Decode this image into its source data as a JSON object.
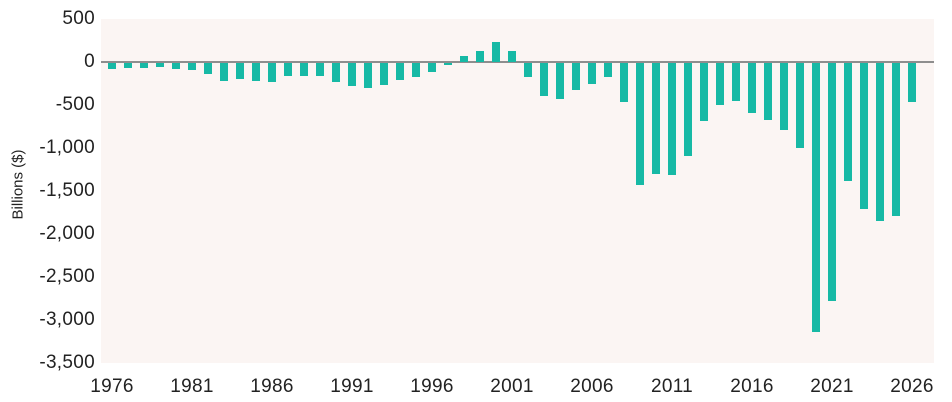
{
  "figure": {
    "title": "",
    "y_axis_title": "Billions ($)",
    "colors": {
      "background": "#ffffff",
      "plot_background": "#fbf5f3",
      "bar": "#17b9a5",
      "zero_line": "#8e8e8e",
      "text": "#222222"
    }
  },
  "chart_data": {
    "type": "bar",
    "title": "",
    "xlabel": "",
    "ylabel": "Billions ($)",
    "ylim": [
      -3500,
      500
    ],
    "grid": false,
    "legend": "none",
    "y_ticks": [
      500,
      0,
      -500,
      -1000,
      -1500,
      -2000,
      -2500,
      -3000,
      -3500
    ],
    "y_tick_labels": [
      "500",
      "0",
      "-500",
      "-1,000",
      "-1,500",
      "-2,000",
      "-2,500",
      "-3,000",
      "-3,500"
    ],
    "x_tick_years": [
      1976,
      1981,
      1986,
      1991,
      1996,
      2001,
      2006,
      2011,
      2016,
      2021,
      2026
    ],
    "x_tick_labels": [
      "1976",
      "1981",
      "1986",
      "1991",
      "1996",
      "2001",
      "2006",
      "2011",
      "2016",
      "2021",
      "2026"
    ],
    "categories": [
      1976,
      1977,
      1978,
      1979,
      1980,
      1981,
      1982,
      1983,
      1984,
      1985,
      1986,
      1987,
      1988,
      1989,
      1990,
      1991,
      1992,
      1993,
      1994,
      1995,
      1996,
      1997,
      1998,
      1999,
      2000,
      2001,
      2002,
      2003,
      2004,
      2005,
      2006,
      2007,
      2008,
      2009,
      2010,
      2011,
      2012,
      2013,
      2014,
      2015,
      2016,
      2017,
      2018,
      2019,
      2020,
      2021,
      2022,
      2023,
      2024,
      2025,
      2026
    ],
    "values": [
      -74,
      -54,
      -59,
      -41,
      -74,
      -79,
      -128,
      -208,
      -185,
      -212,
      -221,
      -150,
      -155,
      -153,
      -221,
      -269,
      -290,
      -255,
      -203,
      -164,
      -107,
      -22,
      69,
      126,
      236,
      128,
      -158,
      -378,
      -413,
      -318,
      -248,
      -161,
      -459,
      -1413,
      -1294,
      -1300,
      -1087,
      -680,
      -485,
      -439,
      -585,
      -665,
      -779,
      -984,
      -3132,
      -2772,
      -1375,
      -1695,
      -1833,
      -1775,
      -450
    ]
  }
}
